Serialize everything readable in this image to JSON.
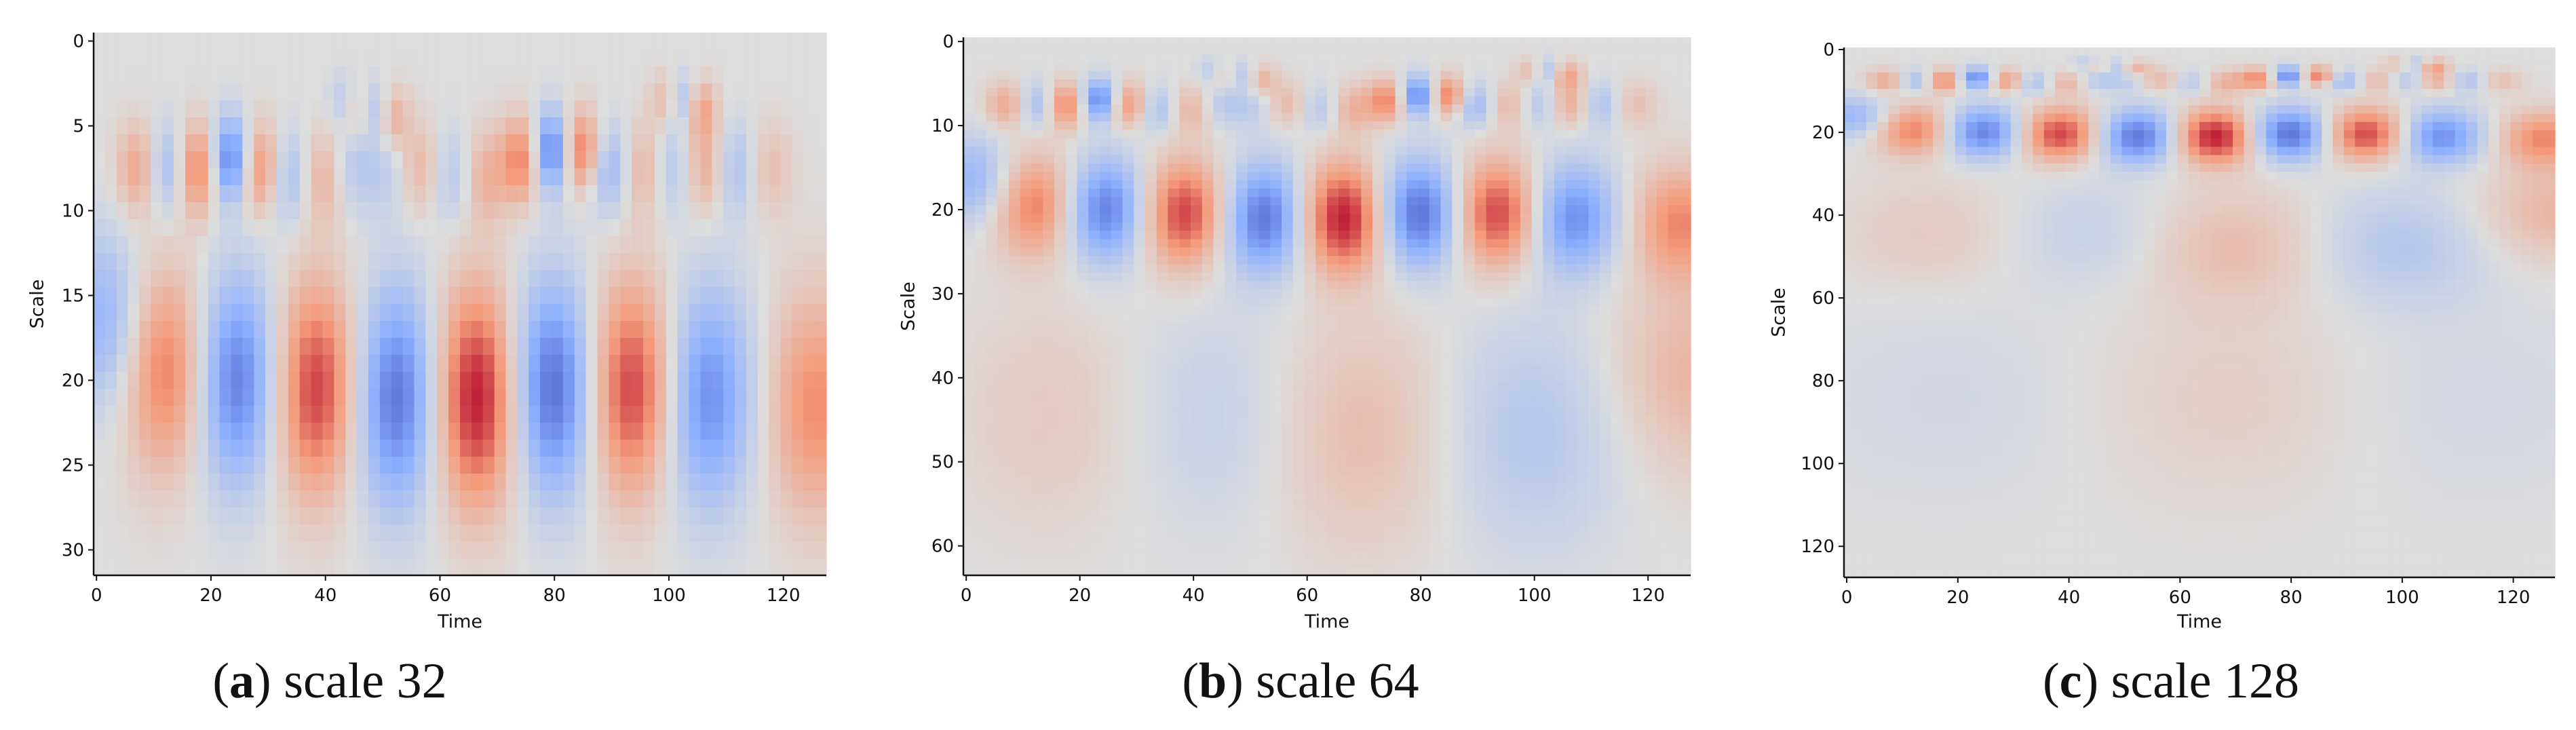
{
  "colormap": {
    "name": "coolwarm",
    "stops": [
      "#3b4cc0",
      "#8db0fe",
      "#dddddd",
      "#f49a7b",
      "#b40426"
    ]
  },
  "chart_data": [
    {
      "type": "heatmap",
      "caption_letter": "a",
      "caption_text": "scale 32",
      "xlabel": "Time",
      "ylabel": "Scale",
      "xlim": [
        0,
        128
      ],
      "ylim": [
        0,
        32
      ],
      "y_inverted": true,
      "xticks": [
        0,
        20,
        40,
        60,
        80,
        100,
        120
      ],
      "yticks": [
        0,
        5,
        10,
        15,
        20,
        25,
        30
      ],
      "grid": false,
      "features": [
        [
          2,
          17,
          -0.45
        ],
        [
          13,
          20,
          0.65
        ],
        [
          25,
          20.5,
          -0.8
        ],
        [
          39,
          21,
          0.85
        ],
        [
          53,
          21.5,
          -0.85
        ],
        [
          67,
          21.5,
          1.0
        ],
        [
          80,
          21,
          -0.9
        ],
        [
          94,
          21,
          0.85
        ],
        [
          107,
          21.5,
          -0.7
        ],
        [
          126,
          22,
          0.55
        ],
        [
          8,
          8,
          0.45
        ],
        [
          13,
          8,
          -0.5
        ],
        [
          18,
          8,
          0.7
        ],
        [
          24,
          7.5,
          -0.85
        ],
        [
          29,
          8,
          0.65
        ],
        [
          34,
          8.5,
          -0.4
        ],
        [
          40,
          8.5,
          0.35
        ],
        [
          45,
          8,
          -0.25
        ],
        [
          51,
          8,
          -0.2
        ],
        [
          57,
          8,
          0.3
        ],
        [
          63,
          8.5,
          -0.3
        ],
        [
          68,
          8.5,
          0.35
        ],
        [
          75,
          7.5,
          0.65
        ],
        [
          80,
          7,
          -0.9
        ],
        [
          85,
          7,
          0.75
        ],
        [
          90,
          8,
          -0.45
        ],
        [
          96,
          8,
          0.35
        ],
        [
          101,
          8,
          -0.3
        ],
        [
          107,
          8,
          0.4
        ],
        [
          112,
          8,
          -0.35
        ],
        [
          118,
          8,
          0.25
        ],
        [
          44,
          4,
          -0.3
        ],
        [
          46,
          4.5,
          0.4
        ],
        [
          49,
          4.5,
          -0.4
        ],
        [
          52,
          5,
          0.4
        ],
        [
          100,
          4,
          0.3
        ],
        [
          103,
          4,
          -0.4
        ],
        [
          106,
          4.5,
          0.45
        ]
      ]
    },
    {
      "type": "heatmap",
      "caption_letter": "b",
      "caption_text": "scale 64",
      "xlabel": "Time",
      "ylabel": "Scale",
      "xlim": [
        0,
        128
      ],
      "ylim": [
        0,
        64
      ],
      "y_inverted": true,
      "xticks": [
        0,
        20,
        40,
        60,
        80,
        100,
        120
      ],
      "yticks": [
        0,
        10,
        20,
        30,
        40,
        50,
        60
      ],
      "grid": false,
      "features": [
        [
          2,
          17,
          -0.45
        ],
        [
          13,
          20,
          0.65
        ],
        [
          25,
          20.5,
          -0.8
        ],
        [
          39,
          21,
          0.85
        ],
        [
          53,
          21.5,
          -0.85
        ],
        [
          67,
          21.5,
          1.0
        ],
        [
          80,
          21,
          -0.9
        ],
        [
          94,
          21,
          0.85
        ],
        [
          107,
          21.5,
          -0.7
        ],
        [
          126,
          22,
          0.55
        ],
        [
          8,
          8,
          0.45
        ],
        [
          13,
          8,
          -0.5
        ],
        [
          18,
          8,
          0.7
        ],
        [
          24,
          7.5,
          -0.85
        ],
        [
          29,
          8,
          0.65
        ],
        [
          34,
          8.5,
          -0.4
        ],
        [
          40,
          8.5,
          0.35
        ],
        [
          45,
          8,
          -0.25
        ],
        [
          51,
          8,
          -0.2
        ],
        [
          57,
          8,
          0.3
        ],
        [
          63,
          8.5,
          -0.3
        ],
        [
          68,
          8.5,
          0.35
        ],
        [
          75,
          7.5,
          0.65
        ],
        [
          80,
          7,
          -0.9
        ],
        [
          85,
          7,
          0.75
        ],
        [
          90,
          8,
          -0.45
        ],
        [
          96,
          8,
          0.35
        ],
        [
          101,
          8,
          -0.3
        ],
        [
          107,
          8,
          0.4
        ],
        [
          112,
          8,
          -0.35
        ],
        [
          118,
          8,
          0.25
        ],
        [
          44,
          4,
          -0.3
        ],
        [
          46,
          4.5,
          0.4
        ],
        [
          49,
          4.5,
          -0.4
        ],
        [
          52,
          5,
          0.4
        ],
        [
          100,
          4,
          0.3
        ],
        [
          103,
          4,
          -0.4
        ],
        [
          106,
          4.5,
          0.45
        ],
        [
          15,
          45,
          0.15
        ],
        [
          45,
          45,
          -0.15
        ],
        [
          70,
          47,
          0.25
        ],
        [
          100,
          47,
          -0.25
        ],
        [
          128,
          40,
          0.3
        ]
      ]
    },
    {
      "type": "heatmap",
      "caption_letter": "c",
      "caption_text": "scale 128",
      "xlabel": "Time",
      "ylabel": "Scale",
      "xlim": [
        0,
        128
      ],
      "ylim": [
        0,
        128
      ],
      "y_inverted": true,
      "xticks": [
        0,
        20,
        40,
        60,
        80,
        100,
        120
      ],
      "yticks": [
        0,
        20,
        40,
        60,
        80,
        100,
        120
      ],
      "grid": false,
      "features": [
        [
          2,
          17,
          -0.45
        ],
        [
          13,
          20,
          0.65
        ],
        [
          25,
          20.5,
          -0.8
        ],
        [
          39,
          21,
          0.85
        ],
        [
          53,
          21.5,
          -0.85
        ],
        [
          67,
          21.5,
          1.0
        ],
        [
          80,
          21,
          -0.9
        ],
        [
          94,
          21,
          0.85
        ],
        [
          107,
          21.5,
          -0.7
        ],
        [
          126,
          22,
          0.55
        ],
        [
          8,
          8,
          0.45
        ],
        [
          13,
          8,
          -0.5
        ],
        [
          18,
          8,
          0.7
        ],
        [
          24,
          7.5,
          -0.85
        ],
        [
          29,
          8,
          0.65
        ],
        [
          34,
          8.5,
          -0.4
        ],
        [
          40,
          8.5,
          0.35
        ],
        [
          45,
          8,
          -0.25
        ],
        [
          51,
          8,
          -0.2
        ],
        [
          57,
          8,
          0.3
        ],
        [
          63,
          8.5,
          -0.3
        ],
        [
          68,
          8.5,
          0.35
        ],
        [
          75,
          7.5,
          0.65
        ],
        [
          80,
          7,
          -0.9
        ],
        [
          85,
          7,
          0.75
        ],
        [
          90,
          8,
          -0.45
        ],
        [
          96,
          8,
          0.35
        ],
        [
          101,
          8,
          -0.3
        ],
        [
          107,
          8,
          0.4
        ],
        [
          112,
          8,
          -0.35
        ],
        [
          118,
          8,
          0.25
        ],
        [
          44,
          4,
          -0.3
        ],
        [
          46,
          4.5,
          0.4
        ],
        [
          49,
          4.5,
          -0.4
        ],
        [
          52,
          5,
          0.4
        ],
        [
          100,
          4,
          0.3
        ],
        [
          103,
          4,
          -0.4
        ],
        [
          106,
          4.5,
          0.45
        ],
        [
          15,
          45,
          0.15
        ],
        [
          45,
          45,
          -0.15
        ],
        [
          70,
          48,
          0.25
        ],
        [
          100,
          48,
          -0.25
        ],
        [
          128,
          40,
          0.3
        ],
        [
          70,
          85,
          0.12
        ],
        [
          20,
          85,
          -0.08
        ],
        [
          110,
          85,
          -0.08
        ]
      ]
    }
  ]
}
